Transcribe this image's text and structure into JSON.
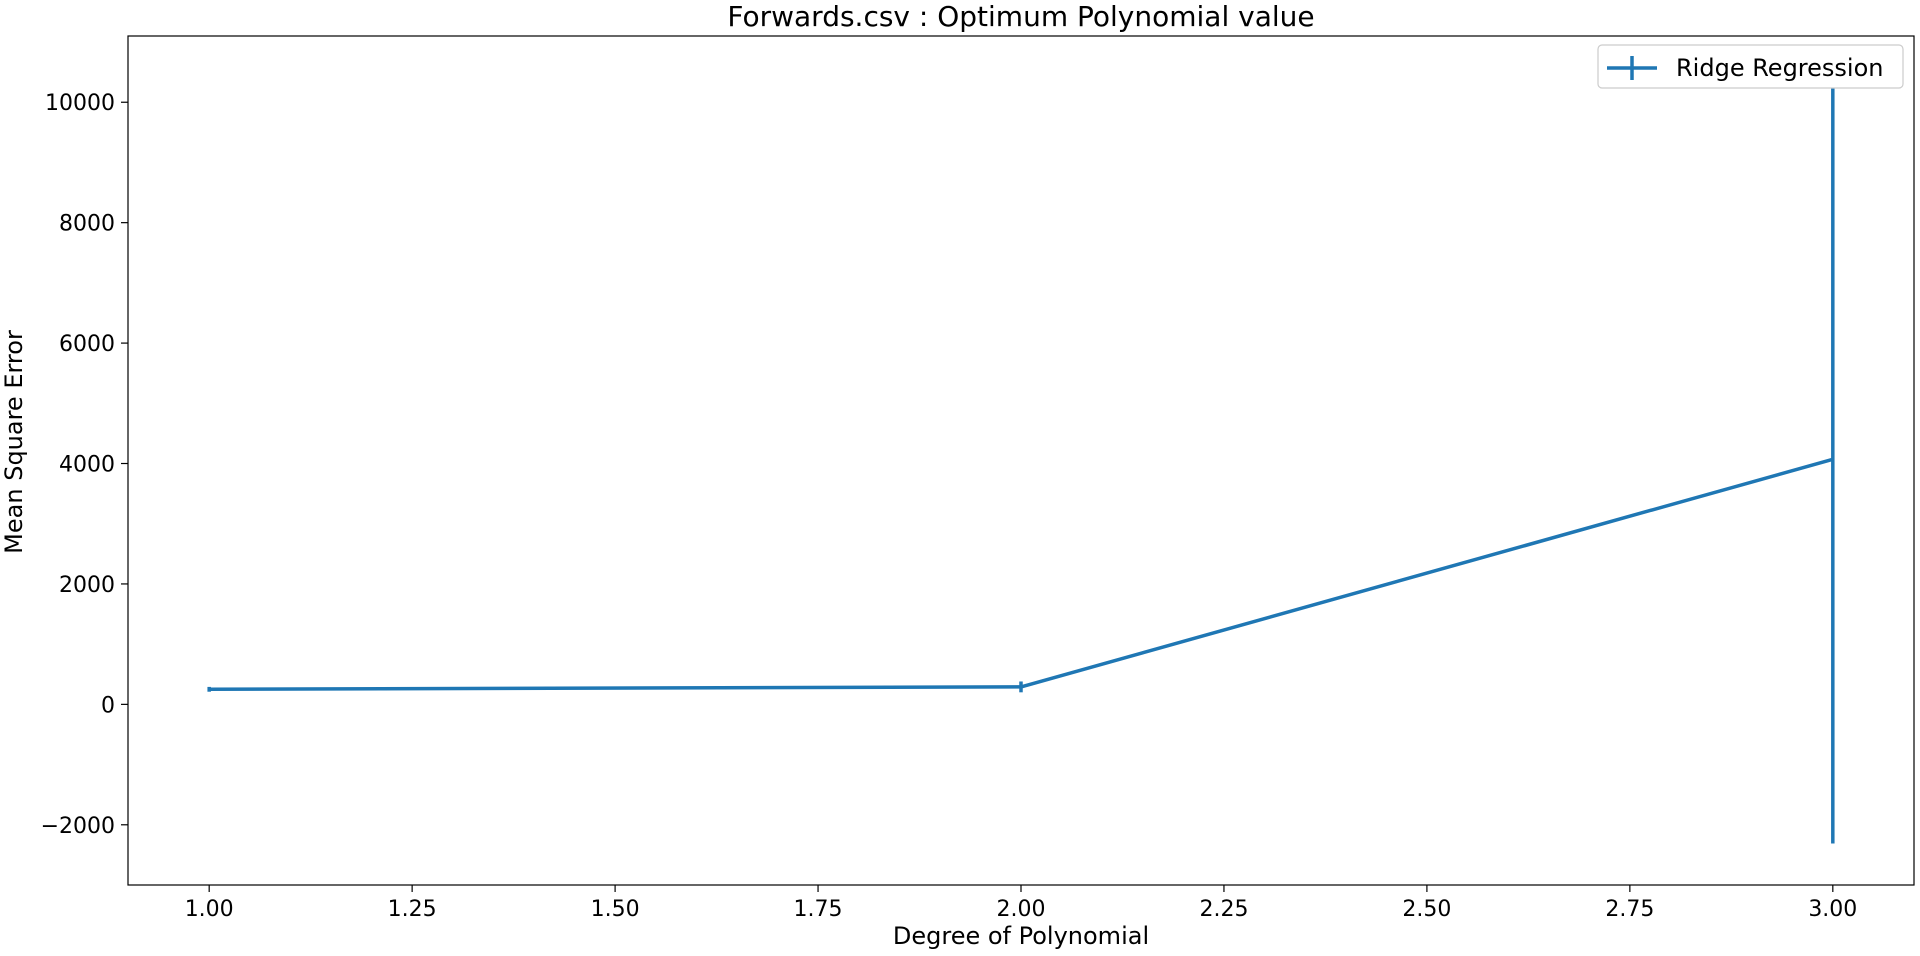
{
  "chart_data": {
    "type": "line",
    "title": "Forwards.csv : Optimum Polynomial value",
    "xlabel": "Degree of Polynomial",
    "ylabel": "Mean Square Error",
    "xlim": [
      0.9,
      3.1
    ],
    "ylim": [
      -3000,
      11100
    ],
    "xticks": [
      1.0,
      1.25,
      1.5,
      1.75,
      2.0,
      2.25,
      2.5,
      2.75,
      3.0
    ],
    "xtick_labels": [
      "1.00",
      "1.25",
      "1.50",
      "1.75",
      "2.00",
      "2.25",
      "2.50",
      "2.75",
      "3.00"
    ],
    "yticks": [
      -2000,
      0,
      2000,
      4000,
      6000,
      8000,
      10000
    ],
    "ytick_labels": [
      "−2000",
      "0",
      "2000",
      "4000",
      "6000",
      "8000",
      "10000"
    ],
    "grid": false,
    "legend_position": "top-right",
    "series": [
      {
        "name": "Ridge Regression",
        "color": "#1f77b4",
        "x": [
          1,
          2,
          3
        ],
        "y": [
          250,
          290,
          4070
        ],
        "yerr": [
          40,
          90,
          6380
        ]
      }
    ]
  }
}
